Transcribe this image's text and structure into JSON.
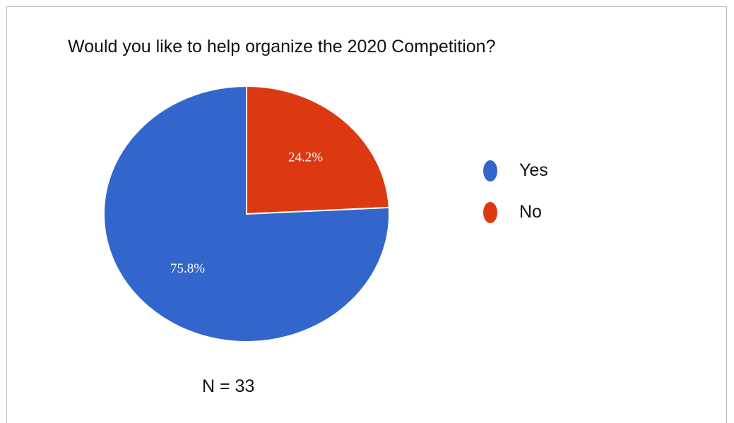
{
  "chart_data": {
    "type": "pie",
    "title": "Would you like to help organize the 2020 Competition?",
    "categories": [
      "Yes",
      "No"
    ],
    "values": [
      75.8,
      24.2
    ],
    "value_labels": [
      "75.8%",
      "24.2%"
    ],
    "colors": [
      "#3366cc",
      "#dc3912"
    ],
    "legend_position": "right",
    "note": "N = 33"
  }
}
